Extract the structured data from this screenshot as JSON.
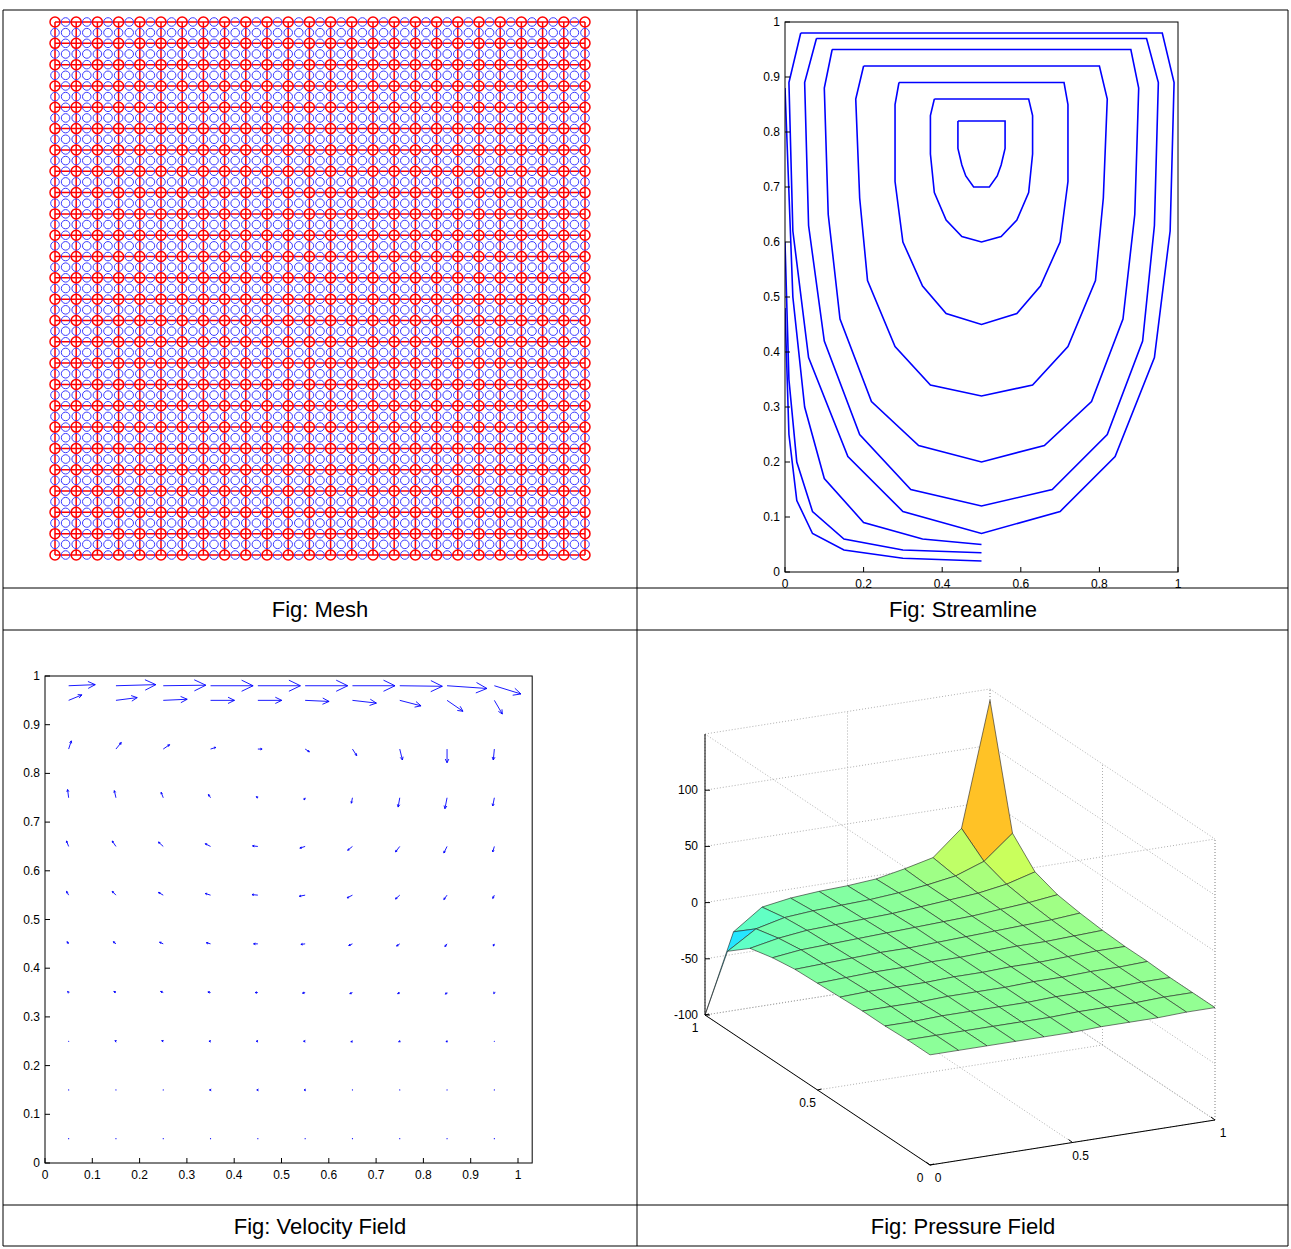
{
  "chart_data": [
    {
      "type": "mesh",
      "caption": "Fig: Mesh",
      "tick_labels": false,
      "marker": "circle",
      "color": "#ff0000",
      "xlim": [
        0,
        1
      ],
      "ylim": [
        0,
        1
      ],
      "x": [
        0,
        0.04,
        0.08,
        0.12,
        0.16,
        0.2,
        0.24,
        0.28,
        0.32,
        0.36,
        0.4,
        0.44,
        0.48,
        0.52,
        0.56,
        0.6,
        0.64,
        0.68,
        0.72,
        0.76,
        0.8,
        0.84,
        0.88,
        0.92,
        0.96,
        1
      ],
      "y": [
        0,
        0.04,
        0.08,
        0.12,
        0.16,
        0.2,
        0.24,
        0.28,
        0.32,
        0.36,
        0.4,
        0.44,
        0.48,
        0.52,
        0.56,
        0.6,
        0.64,
        0.68,
        0.72,
        0.76,
        0.8,
        0.84,
        0.88,
        0.92,
        0.96,
        1
      ]
    },
    {
      "type": "streamline",
      "caption": "Fig: Streamline",
      "color": "#0000ff",
      "xlim": [
        0,
        1
      ],
      "ylim": [
        0,
        1
      ],
      "xticks": [
        0,
        0.2,
        0.4,
        0.6,
        0.8,
        1
      ],
      "yticks": [
        0,
        0.1,
        0.2,
        0.3,
        0.4,
        0.5,
        0.6,
        0.7,
        0.8,
        0.9,
        1
      ],
      "series": [
        {
          "x": [
            0.04,
            0.01,
            0.02,
            0.06,
            0.16,
            0.3,
            0.5,
            0.7,
            0.84,
            0.94,
            0.98,
            0.99,
            0.96,
            0.5,
            0.04
          ],
          "values": [
            0.98,
            0.89,
            0.62,
            0.39,
            0.21,
            0.11,
            0.07,
            0.11,
            0.21,
            0.39,
            0.62,
            0.89,
            0.98,
            0.98,
            0.98
          ]
        },
        {
          "x": [
            0.08,
            0.05,
            0.06,
            0.1,
            0.19,
            0.32,
            0.5,
            0.68,
            0.82,
            0.91,
            0.94,
            0.95,
            0.92,
            0.5,
            0.08
          ],
          "values": [
            0.97,
            0.89,
            0.63,
            0.42,
            0.25,
            0.15,
            0.12,
            0.15,
            0.25,
            0.42,
            0.63,
            0.89,
            0.97,
            0.97,
            0.97
          ]
        },
        {
          "x": [
            0.12,
            0.1,
            0.11,
            0.14,
            0.22,
            0.34,
            0.5,
            0.66,
            0.78,
            0.86,
            0.89,
            0.9,
            0.88,
            0.5,
            0.12
          ],
          "values": [
            0.95,
            0.88,
            0.65,
            0.46,
            0.31,
            0.23,
            0.2,
            0.23,
            0.31,
            0.46,
            0.65,
            0.88,
            0.95,
            0.95,
            0.95
          ]
        },
        {
          "x": [
            0.2,
            0.18,
            0.19,
            0.21,
            0.28,
            0.37,
            0.5,
            0.63,
            0.72,
            0.79,
            0.81,
            0.82,
            0.8,
            0.5,
            0.2
          ],
          "values": [
            0.92,
            0.86,
            0.68,
            0.53,
            0.41,
            0.34,
            0.32,
            0.34,
            0.41,
            0.53,
            0.68,
            0.86,
            0.92,
            0.92,
            0.92
          ]
        },
        {
          "x": [
            0.29,
            0.28,
            0.28,
            0.3,
            0.35,
            0.41,
            0.5,
            0.59,
            0.65,
            0.7,
            0.72,
            0.72,
            0.71,
            0.5,
            0.29
          ],
          "values": [
            0.89,
            0.85,
            0.71,
            0.6,
            0.52,
            0.47,
            0.45,
            0.47,
            0.52,
            0.6,
            0.71,
            0.85,
            0.89,
            0.89,
            0.89
          ]
        },
        {
          "x": [
            0.38,
            0.37,
            0.37,
            0.38,
            0.41,
            0.45,
            0.5,
            0.55,
            0.59,
            0.62,
            0.63,
            0.63,
            0.62,
            0.5,
            0.38
          ],
          "values": [
            0.86,
            0.83,
            0.76,
            0.69,
            0.64,
            0.61,
            0.6,
            0.61,
            0.64,
            0.69,
            0.76,
            0.83,
            0.86,
            0.86,
            0.86
          ]
        },
        {
          "x": [
            0.44,
            0.44,
            0.44,
            0.45,
            0.46,
            0.48,
            0.5,
            0.52,
            0.54,
            0.55,
            0.56,
            0.56,
            0.56,
            0.5,
            0.44
          ],
          "values": [
            0.82,
            0.81,
            0.77,
            0.74,
            0.72,
            0.7,
            0.7,
            0.7,
            0.72,
            0.74,
            0.77,
            0.81,
            0.82,
            0.82,
            0.82
          ]
        },
        {
          "x": [
            0.0,
            0.02,
            0.05,
            0.1,
            0.2,
            0.35,
            0.5
          ],
          "values": [
            0.88,
            0.5,
            0.3,
            0.17,
            0.09,
            0.06,
            0.05
          ]
        },
        {
          "x": [
            0.0,
            0.01,
            0.03,
            0.07,
            0.15,
            0.3,
            0.5
          ],
          "values": [
            0.6,
            0.35,
            0.2,
            0.11,
            0.06,
            0.04,
            0.035
          ]
        },
        {
          "x": [
            0.0,
            0.01,
            0.03,
            0.07,
            0.15,
            0.3,
            0.5
          ],
          "values": [
            0.48,
            0.25,
            0.13,
            0.07,
            0.04,
            0.025,
            0.02
          ]
        }
      ]
    },
    {
      "type": "quiver",
      "caption": "Fig: Velocity Field",
      "color": "#0000ff",
      "xlim": [
        0,
        1.03
      ],
      "ylim": [
        0,
        1
      ],
      "xticks": [
        0,
        0.1,
        0.2,
        0.3,
        0.4,
        0.5,
        0.6,
        0.7,
        0.8,
        0.9,
        1
      ],
      "yticks": [
        0,
        0.1,
        0.2,
        0.3,
        0.4,
        0.5,
        0.6,
        0.7,
        0.8,
        0.9,
        1
      ],
      "x": [
        0.05,
        0.15,
        0.25,
        0.35,
        0.45,
        0.55,
        0.65,
        0.75,
        0.85,
        0.95
      ],
      "y": [
        0.05,
        0.15,
        0.25,
        0.35,
        0.45,
        0.55,
        0.65,
        0.75,
        0.85,
        0.95,
        0.98
      ],
      "u": [
        [
          0,
          0,
          0,
          -0.01,
          -0.01,
          -0.01,
          0,
          0,
          0,
          0
        ],
        [
          -0.01,
          -0.01,
          -0.01,
          -0.02,
          -0.02,
          -0.02,
          -0.01,
          -0.01,
          -0.01,
          0
        ],
        [
          -0.01,
          -0.02,
          -0.03,
          -0.03,
          -0.03,
          -0.03,
          -0.03,
          -0.02,
          -0.02,
          -0.01
        ],
        [
          -0.02,
          -0.04,
          -0.05,
          -0.05,
          -0.05,
          -0.05,
          -0.05,
          -0.04,
          -0.03,
          -0.01
        ],
        [
          -0.03,
          -0.05,
          -0.07,
          -0.08,
          -0.08,
          -0.08,
          -0.07,
          -0.06,
          -0.04,
          -0.02
        ],
        [
          -0.04,
          -0.07,
          -0.09,
          -0.1,
          -0.11,
          -0.11,
          -0.1,
          -0.08,
          -0.06,
          -0.03
        ],
        [
          -0.04,
          -0.07,
          -0.09,
          -0.1,
          -0.1,
          -0.1,
          -0.09,
          -0.08,
          -0.06,
          -0.03
        ],
        [
          -0.02,
          -0.03,
          -0.04,
          -0.04,
          -0.03,
          -0.02,
          -0.02,
          -0.03,
          -0.04,
          -0.03
        ],
        [
          0.05,
          0.1,
          0.12,
          0.1,
          0.08,
          0.08,
          0.08,
          0.05,
          0,
          -0.02
        ],
        [
          0.25,
          0.4,
          0.45,
          0.45,
          0.45,
          0.45,
          0.45,
          0.4,
          0.3,
          0.15
        ],
        [
          0.5,
          0.75,
          0.8,
          0.8,
          0.8,
          0.8,
          0.8,
          0.8,
          0.75,
          0.5
        ]
      ],
      "v": [
        [
          0,
          0,
          0,
          0,
          0,
          0,
          0,
          0,
          0,
          0
        ],
        [
          0,
          0,
          0,
          0,
          0,
          0,
          0,
          0,
          0,
          0
        ],
        [
          0.01,
          0.01,
          0.01,
          0,
          0,
          0,
          -0.01,
          -0.01,
          -0.01,
          -0.01
        ],
        [
          0.02,
          0.02,
          0.02,
          0.01,
          0,
          -0.01,
          -0.02,
          -0.02,
          -0.03,
          -0.02
        ],
        [
          0.04,
          0.04,
          0.03,
          0.02,
          0,
          -0.01,
          -0.03,
          -0.04,
          -0.05,
          -0.04
        ],
        [
          0.07,
          0.07,
          0.05,
          0.03,
          0.01,
          -0.02,
          -0.05,
          -0.07,
          -0.08,
          -0.06
        ],
        [
          0.1,
          0.1,
          0.08,
          0.05,
          0.01,
          -0.03,
          -0.07,
          -0.1,
          -0.12,
          -0.1
        ],
        [
          0.15,
          0.13,
          0.1,
          0.06,
          0.02,
          -0.04,
          -0.1,
          -0.17,
          -0.2,
          -0.15
        ],
        [
          0.15,
          0.12,
          0.08,
          0.03,
          0,
          -0.05,
          -0.12,
          -0.2,
          -0.25,
          -0.2
        ],
        [
          0.1,
          0.05,
          0.02,
          0,
          0,
          -0.02,
          -0.05,
          -0.1,
          -0.2,
          -0.25
        ],
        [
          0.02,
          0.02,
          0.01,
          0,
          0,
          0,
          0,
          -0.01,
          -0.05,
          -0.15
        ]
      ]
    },
    {
      "type": "surface",
      "caption": "Fig: Pressure Field",
      "grid": true,
      "xlim": [
        0,
        1
      ],
      "ylim": [
        0,
        1
      ],
      "zlim": [
        -100,
        150
      ],
      "xticks": [
        0,
        0.5,
        1
      ],
      "yticks": [
        0,
        0.5,
        1
      ],
      "zticks": [
        -100,
        -50,
        0,
        50,
        100
      ],
      "x": [
        0,
        0.1,
        0.2,
        0.3,
        0.4,
        0.5,
        0.6,
        0.7,
        0.8,
        0.9,
        1
      ],
      "y": [
        0,
        0.1,
        0.2,
        0.3,
        0.4,
        0.5,
        0.6,
        0.7,
        0.8,
        0.9,
        1
      ],
      "z": [
        [
          -2,
          -2,
          -2,
          -2,
          -2,
          -2,
          -1,
          -1,
          -1,
          0,
          0
        ],
        [
          -2,
          -2,
          -2,
          -2,
          -2,
          -2,
          -1,
          -1,
          -1,
          0,
          0
        ],
        [
          -3,
          -3,
          -2,
          -2,
          -2,
          -2,
          -1,
          -1,
          -1,
          0,
          0
        ],
        [
          -3,
          -3,
          -3,
          -2,
          -2,
          -2,
          -1,
          -1,
          0,
          0,
          1
        ],
        [
          -4,
          -3,
          -3,
          -3,
          -2,
          -2,
          -1,
          -1,
          0,
          1,
          1
        ],
        [
          -5,
          -4,
          -3,
          -3,
          -2,
          -2,
          -1,
          0,
          0,
          1,
          2
        ],
        [
          -6,
          -5,
          -4,
          -3,
          -3,
          -2,
          -1,
          0,
          1,
          2,
          4
        ],
        [
          -9,
          -6,
          -5,
          -4,
          -3,
          -2,
          -1,
          0,
          2,
          4,
          7
        ],
        [
          -14,
          -9,
          -6,
          -5,
          -4,
          -3,
          -1,
          1,
          3,
          7,
          14
        ],
        [
          -30,
          -14,
          -8,
          -6,
          -5,
          -4,
          -2,
          1,
          5,
          14,
          35
        ],
        [
          -100,
          -30,
          -12,
          -8,
          -6,
          -5,
          -3,
          2,
          8,
          30,
          140
        ]
      ]
    }
  ]
}
